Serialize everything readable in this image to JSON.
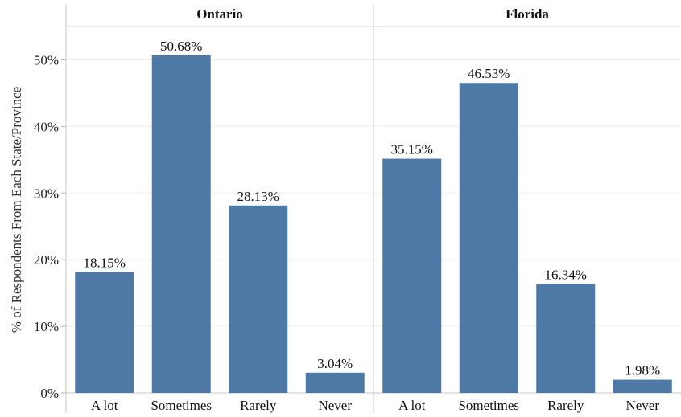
{
  "chart_data": {
    "type": "bar",
    "ylabel": "% of Respondents From Each State/Province",
    "ylim": [
      0,
      0.55
    ],
    "yticks": [
      0,
      0.1,
      0.2,
      0.3,
      0.4,
      0.5
    ],
    "ytick_labels": [
      "0%",
      "10%",
      "20%",
      "30%",
      "40%",
      "50%"
    ],
    "categories": [
      "A lot",
      "Sometimes",
      "Rarely",
      "Never"
    ],
    "bar_color": "#4e79a7",
    "grid": "horizontal",
    "panels": [
      {
        "title": "Ontario",
        "values": [
          0.1815,
          0.5068,
          0.2813,
          0.0304
        ],
        "labels": [
          "18.15%",
          "50.68%",
          "28.13%",
          "3.04%"
        ]
      },
      {
        "title": "Florida",
        "values": [
          0.3515,
          0.4653,
          0.1634,
          0.0198
        ],
        "labels": [
          "35.15%",
          "46.53%",
          "16.34%",
          "1.98%"
        ]
      }
    ]
  }
}
